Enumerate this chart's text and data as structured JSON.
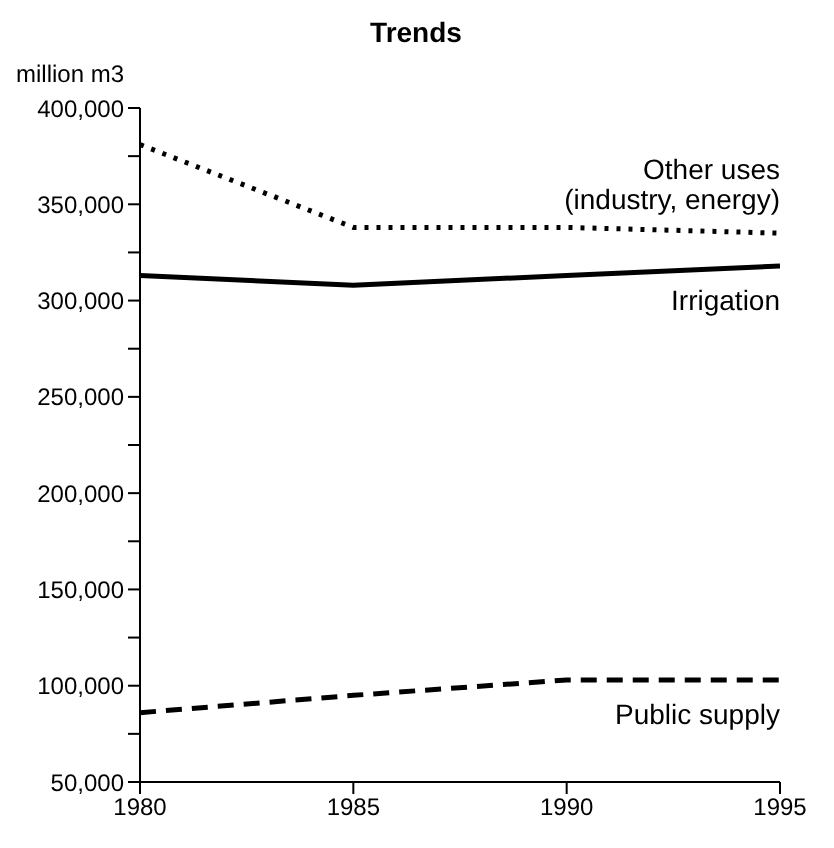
{
  "chart_data": {
    "type": "line",
    "title": "Trends",
    "ylabel": "million m3",
    "x": [
      1980,
      1985,
      1990,
      1995
    ],
    "xlim": [
      1980,
      1995
    ],
    "xticks": [
      1980,
      1985,
      1990,
      1995
    ],
    "ylim": [
      50000,
      400000
    ],
    "yticks": [
      {
        "value": 50000,
        "label": "50,000"
      },
      {
        "value": 75000,
        "label": null
      },
      {
        "value": 100000,
        "label": "100,000"
      },
      {
        "value": 125000,
        "label": null
      },
      {
        "value": 150000,
        "label": "150,000"
      },
      {
        "value": 175000,
        "label": null
      },
      {
        "value": 200000,
        "label": "200,000"
      },
      {
        "value": 225000,
        "label": null
      },
      {
        "value": 250000,
        "label": "250,000"
      },
      {
        "value": 275000,
        "label": null
      },
      {
        "value": 300000,
        "label": "300,000"
      },
      {
        "value": 325000,
        "label": null
      },
      {
        "value": 350000,
        "label": "350,000"
      },
      {
        "value": 375000,
        "label": null
      },
      {
        "value": 400000,
        "label": "400,000"
      }
    ],
    "marker": "none",
    "series": [
      {
        "name": "Other uses (industry, energy)",
        "color": "#000000",
        "line_style": "dotted",
        "values": [
          381000,
          338000,
          338000,
          335000
        ]
      },
      {
        "name": "Irrigation",
        "color": "#000000",
        "line_style": "solid",
        "values": [
          313000,
          308000,
          313000,
          318000
        ]
      },
      {
        "name": "Public supply",
        "color": "#000000",
        "line_style": "dashed",
        "values": [
          86000,
          95000,
          103000,
          103000
        ]
      }
    ]
  }
}
